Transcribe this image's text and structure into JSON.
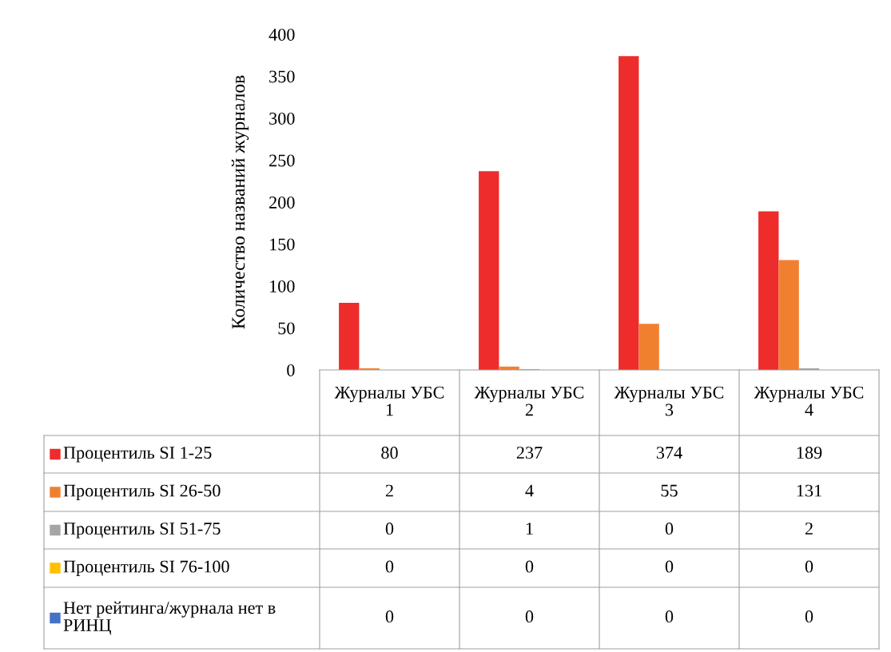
{
  "chart_data": {
    "type": "bar",
    "ylabel": "Количество названий журналов",
    "categories": [
      "Журналы УБС 1",
      "Журналы УБС 2",
      "Журналы УБС 3",
      "Журналы УБС 4"
    ],
    "series": [
      {
        "name": "Процентиль SI 1-25",
        "color": "#ee2c2c",
        "values": [
          80,
          237,
          374,
          189
        ]
      },
      {
        "name": "Процентиль SI 26-50",
        "color": "#f08030",
        "values": [
          2,
          4,
          55,
          131
        ]
      },
      {
        "name": "Процентиль SI 51-75",
        "color": "#a5a5a5",
        "values": [
          0,
          1,
          0,
          2
        ]
      },
      {
        "name": "Процентиль SI 76-100",
        "color": "#ffc000",
        "values": [
          0,
          0,
          0,
          0
        ]
      },
      {
        "name": "Нет рейтинга/журнала нет в РИНЦ",
        "color": "#4472c4",
        "values": [
          0,
          0,
          0,
          0
        ]
      }
    ],
    "ylim": [
      0,
      400
    ],
    "yticks": [
      0,
      50,
      100,
      150,
      200,
      250,
      300,
      350,
      400
    ],
    "data_labels": true,
    "legend": "bottom",
    "grid": false
  }
}
